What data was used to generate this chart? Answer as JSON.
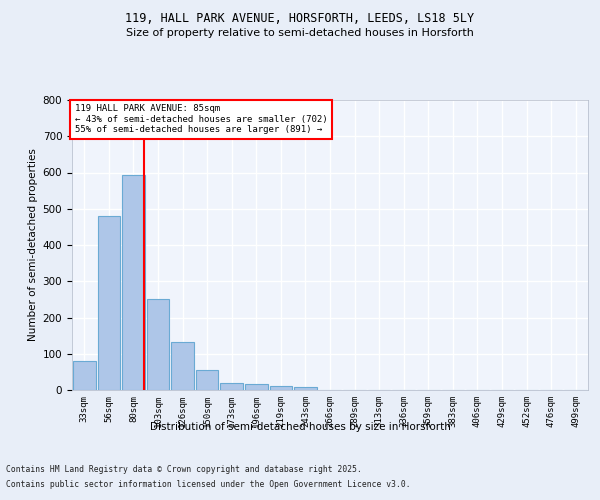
{
  "title_line1": "119, HALL PARK AVENUE, HORSFORTH, LEEDS, LS18 5LY",
  "title_line2": "Size of property relative to semi-detached houses in Horsforth",
  "xlabel": "Distribution of semi-detached houses by size in Horsforth",
  "ylabel": "Number of semi-detached properties",
  "categories": [
    "33sqm",
    "56sqm",
    "80sqm",
    "103sqm",
    "126sqm",
    "150sqm",
    "173sqm",
    "196sqm",
    "219sqm",
    "243sqm",
    "266sqm",
    "289sqm",
    "313sqm",
    "336sqm",
    "359sqm",
    "383sqm",
    "406sqm",
    "429sqm",
    "452sqm",
    "476sqm",
    "499sqm"
  ],
  "values": [
    80,
    480,
    592,
    250,
    132,
    55,
    20,
    17,
    11,
    8,
    0,
    0,
    0,
    0,
    0,
    0,
    0,
    0,
    0,
    0,
    0
  ],
  "bar_color": "#aec6e8",
  "bar_edge_color": "#6aaad4",
  "vline_color": "red",
  "vline_x_index": 2.45,
  "annotation_text": "119 HALL PARK AVENUE: 85sqm\n← 43% of semi-detached houses are smaller (702)\n55% of semi-detached houses are larger (891) →",
  "annotation_box_color": "white",
  "annotation_box_edge": "red",
  "ylim": [
    0,
    800
  ],
  "yticks": [
    0,
    100,
    200,
    300,
    400,
    500,
    600,
    700,
    800
  ],
  "footer_line1": "Contains HM Land Registry data © Crown copyright and database right 2025.",
  "footer_line2": "Contains public sector information licensed under the Open Government Licence v3.0.",
  "bg_color": "#e8eef8",
  "plot_bg_color": "#f0f4fc"
}
